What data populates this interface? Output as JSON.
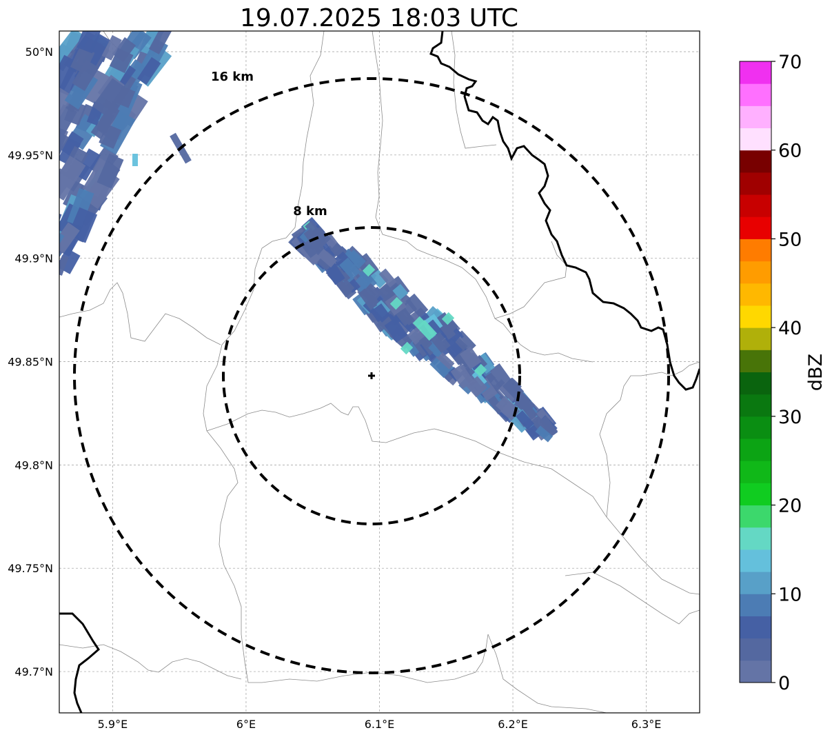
{
  "title": "19.07.2025 18:03 UTC",
  "map": {
    "lon_range": [
      5.86,
      6.34
    ],
    "lat_range": [
      49.68,
      50.01
    ],
    "x_ticks": [
      {
        "value": 5.9,
        "label": "5.9°E"
      },
      {
        "value": 6.0,
        "label": "6°E"
      },
      {
        "value": 6.1,
        "label": "6.1°E"
      },
      {
        "value": 6.2,
        "label": "6.2°E"
      },
      {
        "value": 6.3,
        "label": "6.3°E"
      }
    ],
    "y_ticks": [
      {
        "value": 50.0,
        "label": "50°N"
      },
      {
        "value": 49.95,
        "label": "49.95°N"
      },
      {
        "value": 49.9,
        "label": "49.9°N"
      },
      {
        "value": 49.85,
        "label": "49.85°N"
      },
      {
        "value": 49.8,
        "label": "49.8°N"
      },
      {
        "value": 49.75,
        "label": "49.75°N"
      },
      {
        "value": 49.7,
        "label": "49.7°N"
      }
    ],
    "grid": true,
    "radar_site": {
      "lon": 6.0955,
      "lat": 49.8435,
      "marker": "plus"
    },
    "range_rings": [
      {
        "label": "8 km",
        "radius_km": 8
      },
      {
        "label": "16 km",
        "radius_km": 16
      }
    ]
  },
  "colorbar": {
    "label": "dBZ",
    "min": 0,
    "max": 70,
    "ticks": [
      "0",
      "10",
      "20",
      "30",
      "40",
      "50",
      "60",
      "70"
    ],
    "colors": [
      "#6474a6",
      "#5468a0",
      "#4560a4",
      "#4c7cb4",
      "#58a0c8",
      "#64c0dc",
      "#64d8c4",
      "#3cd86c",
      "#10cc20",
      "#10b818",
      "#0ca414",
      "#0a8e12",
      "#0a7810",
      "#0a640e",
      "#487408",
      "#b0b00a",
      "#ffd800",
      "#ffb800",
      "#ff9c00",
      "#ff7c00",
      "#e80000",
      "#c80000",
      "#a00000",
      "#780000",
      "#ffe0ff",
      "#ffb0ff",
      "#ff70ff",
      "#f030f0"
    ]
  },
  "echo_cells": [
    {
      "name": "northwest-echo",
      "dbz_range": [
        0,
        16
      ]
    },
    {
      "name": "central-echo-band",
      "dbz_range": [
        0,
        18
      ]
    }
  ]
}
